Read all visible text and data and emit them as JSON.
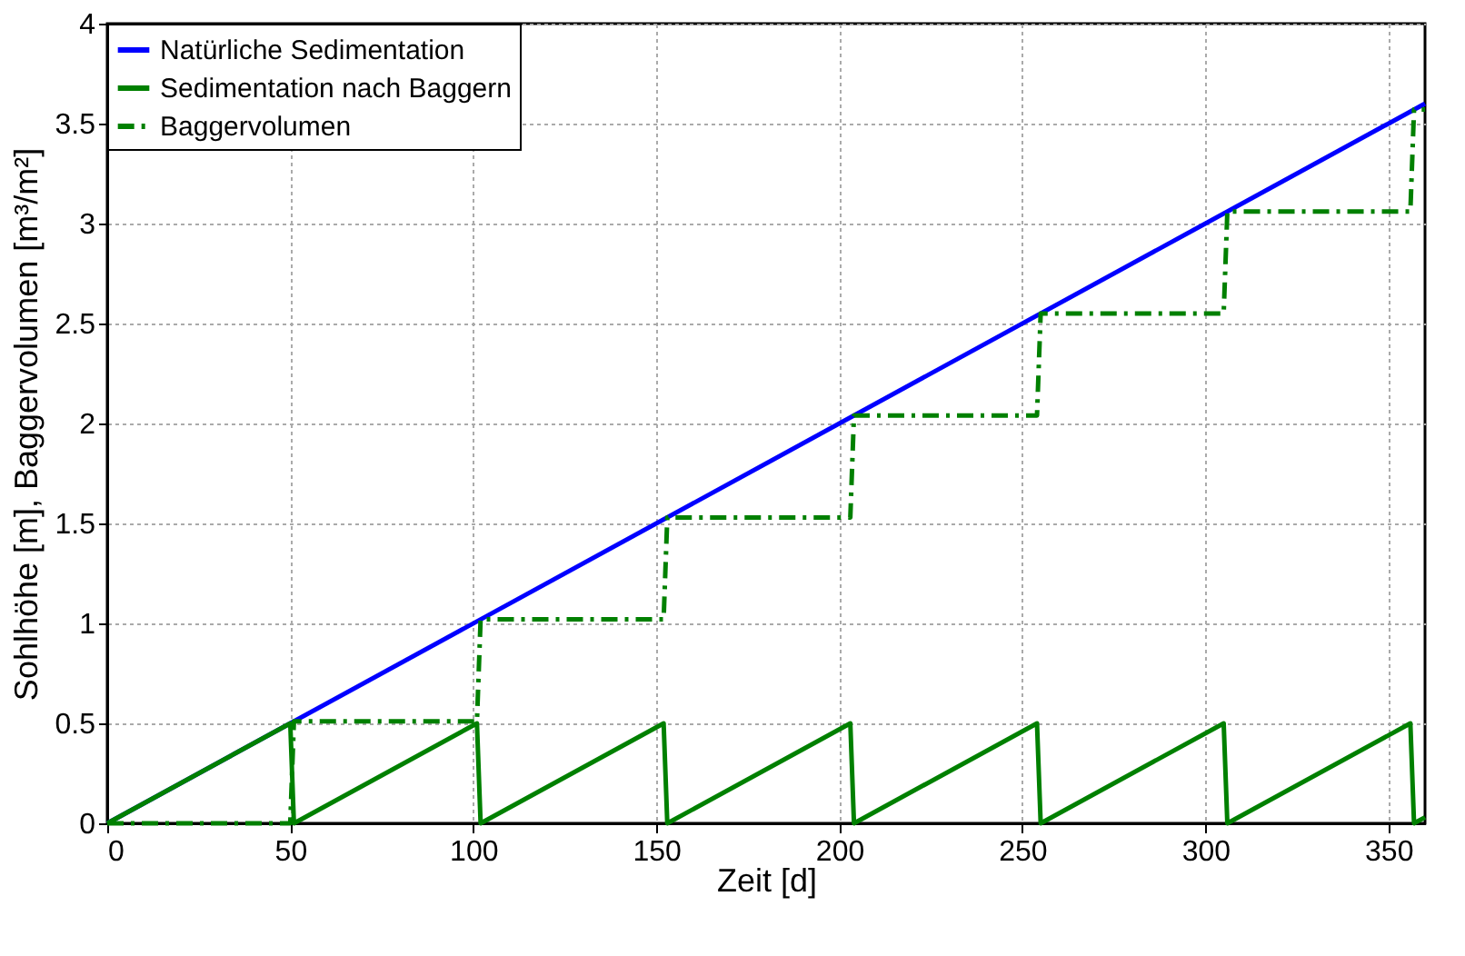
{
  "chart_data": {
    "type": "line",
    "xlabel": "Zeit [d]",
    "ylabel": "Sohlhöhe [m], Baggervolumen [m³/m²]",
    "xlim": [
      0,
      360
    ],
    "xticks": [
      0,
      50,
      100,
      150,
      200,
      250,
      300,
      350
    ],
    "ylim": [
      0,
      4
    ],
    "yticks": [
      0,
      0.5,
      1,
      1.5,
      2,
      2.5,
      3,
      3.5,
      4
    ],
    "grid": true,
    "legend": "top left",
    "marker": "none",
    "series": [
      {
        "name": "Natürliche Sedimentation",
        "color": "#0000ff",
        "line_style": "solid",
        "x": [
          0,
          360
        ],
        "values": [
          0,
          3.6
        ]
      },
      {
        "name": "Sedimentation nach Baggern",
        "color": "#008000",
        "line_style": "solid",
        "x": [
          0,
          50,
          51,
          101,
          102,
          152,
          153,
          203,
          204,
          254,
          255,
          305,
          306,
          356,
          357,
          360
        ],
        "values": [
          0,
          0.5,
          0,
          0.5,
          0,
          0.5,
          0,
          0.5,
          0,
          0.5,
          0,
          0.5,
          0,
          0.5,
          0,
          0.03
        ]
      },
      {
        "name": "Baggervolumen",
        "color": "#008000",
        "line_style": "dashed",
        "x": [
          0,
          50,
          51,
          101,
          102,
          152,
          153,
          203,
          204,
          254,
          255,
          305,
          306,
          356,
          357,
          360
        ],
        "values": [
          0,
          0,
          0.51,
          0.51,
          1.02,
          1.02,
          1.53,
          1.53,
          2.04,
          2.04,
          2.55,
          2.55,
          3.06,
          3.06,
          3.57,
          3.57
        ]
      }
    ]
  }
}
